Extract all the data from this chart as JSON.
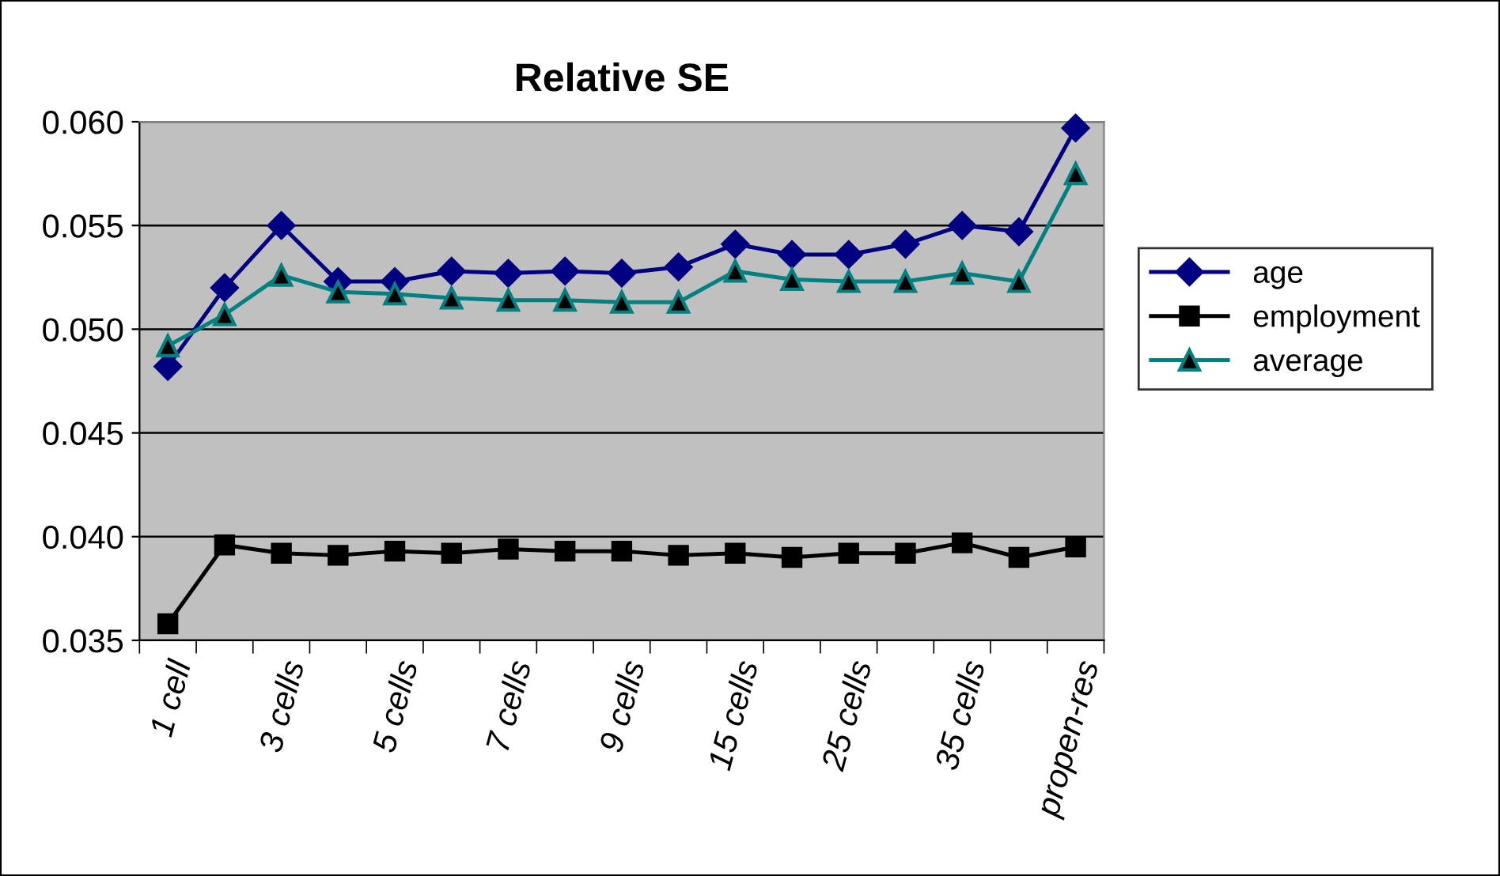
{
  "chart_data": {
    "type": "line",
    "title": "Relative SE",
    "categories": [
      "1 cell",
      null,
      "3 cells",
      null,
      "5 cells",
      null,
      "7 cells",
      null,
      "9 cells",
      null,
      "15 cells",
      null,
      "25 cells",
      null,
      "35 cells",
      null,
      "propen-res"
    ],
    "series": [
      {
        "name": "age",
        "color": "#000080",
        "marker": "diamond",
        "values": [
          0.0482,
          0.052,
          0.055,
          0.0523,
          0.0523,
          0.0528,
          0.0527,
          0.0528,
          0.0527,
          0.053,
          0.0541,
          0.0536,
          0.0536,
          0.0541,
          0.055,
          0.0547,
          0.0597
        ]
      },
      {
        "name": "employment",
        "color": "#000000",
        "marker": "square",
        "values": [
          0.0358,
          0.0396,
          0.0392,
          0.0391,
          0.0393,
          0.0392,
          0.0394,
          0.0393,
          0.0393,
          0.0391,
          0.0392,
          0.039,
          0.0392,
          0.0392,
          0.0397,
          0.039,
          0.0395
        ]
      },
      {
        "name": "average",
        "color": "#008080",
        "marker": "triangle",
        "values": [
          0.0492,
          0.0507,
          0.0526,
          0.0518,
          0.0517,
          0.0515,
          0.0514,
          0.0514,
          0.0513,
          0.0513,
          0.0528,
          0.0524,
          0.0523,
          0.0523,
          0.0527,
          0.0523,
          0.0575
        ]
      }
    ],
    "ylim": [
      0.035,
      0.06
    ],
    "yticks": [
      {
        "value": 0.035,
        "label": "0.035"
      },
      {
        "value": 0.04,
        "label": "0.040"
      },
      {
        "value": 0.045,
        "label": "0.045"
      },
      {
        "value": 0.05,
        "label": "0.050"
      },
      {
        "value": 0.055,
        "label": "0.055"
      },
      {
        "value": 0.06,
        "label": "0.060"
      }
    ],
    "grid": "y",
    "legend": "right",
    "line_style": "solid"
  }
}
